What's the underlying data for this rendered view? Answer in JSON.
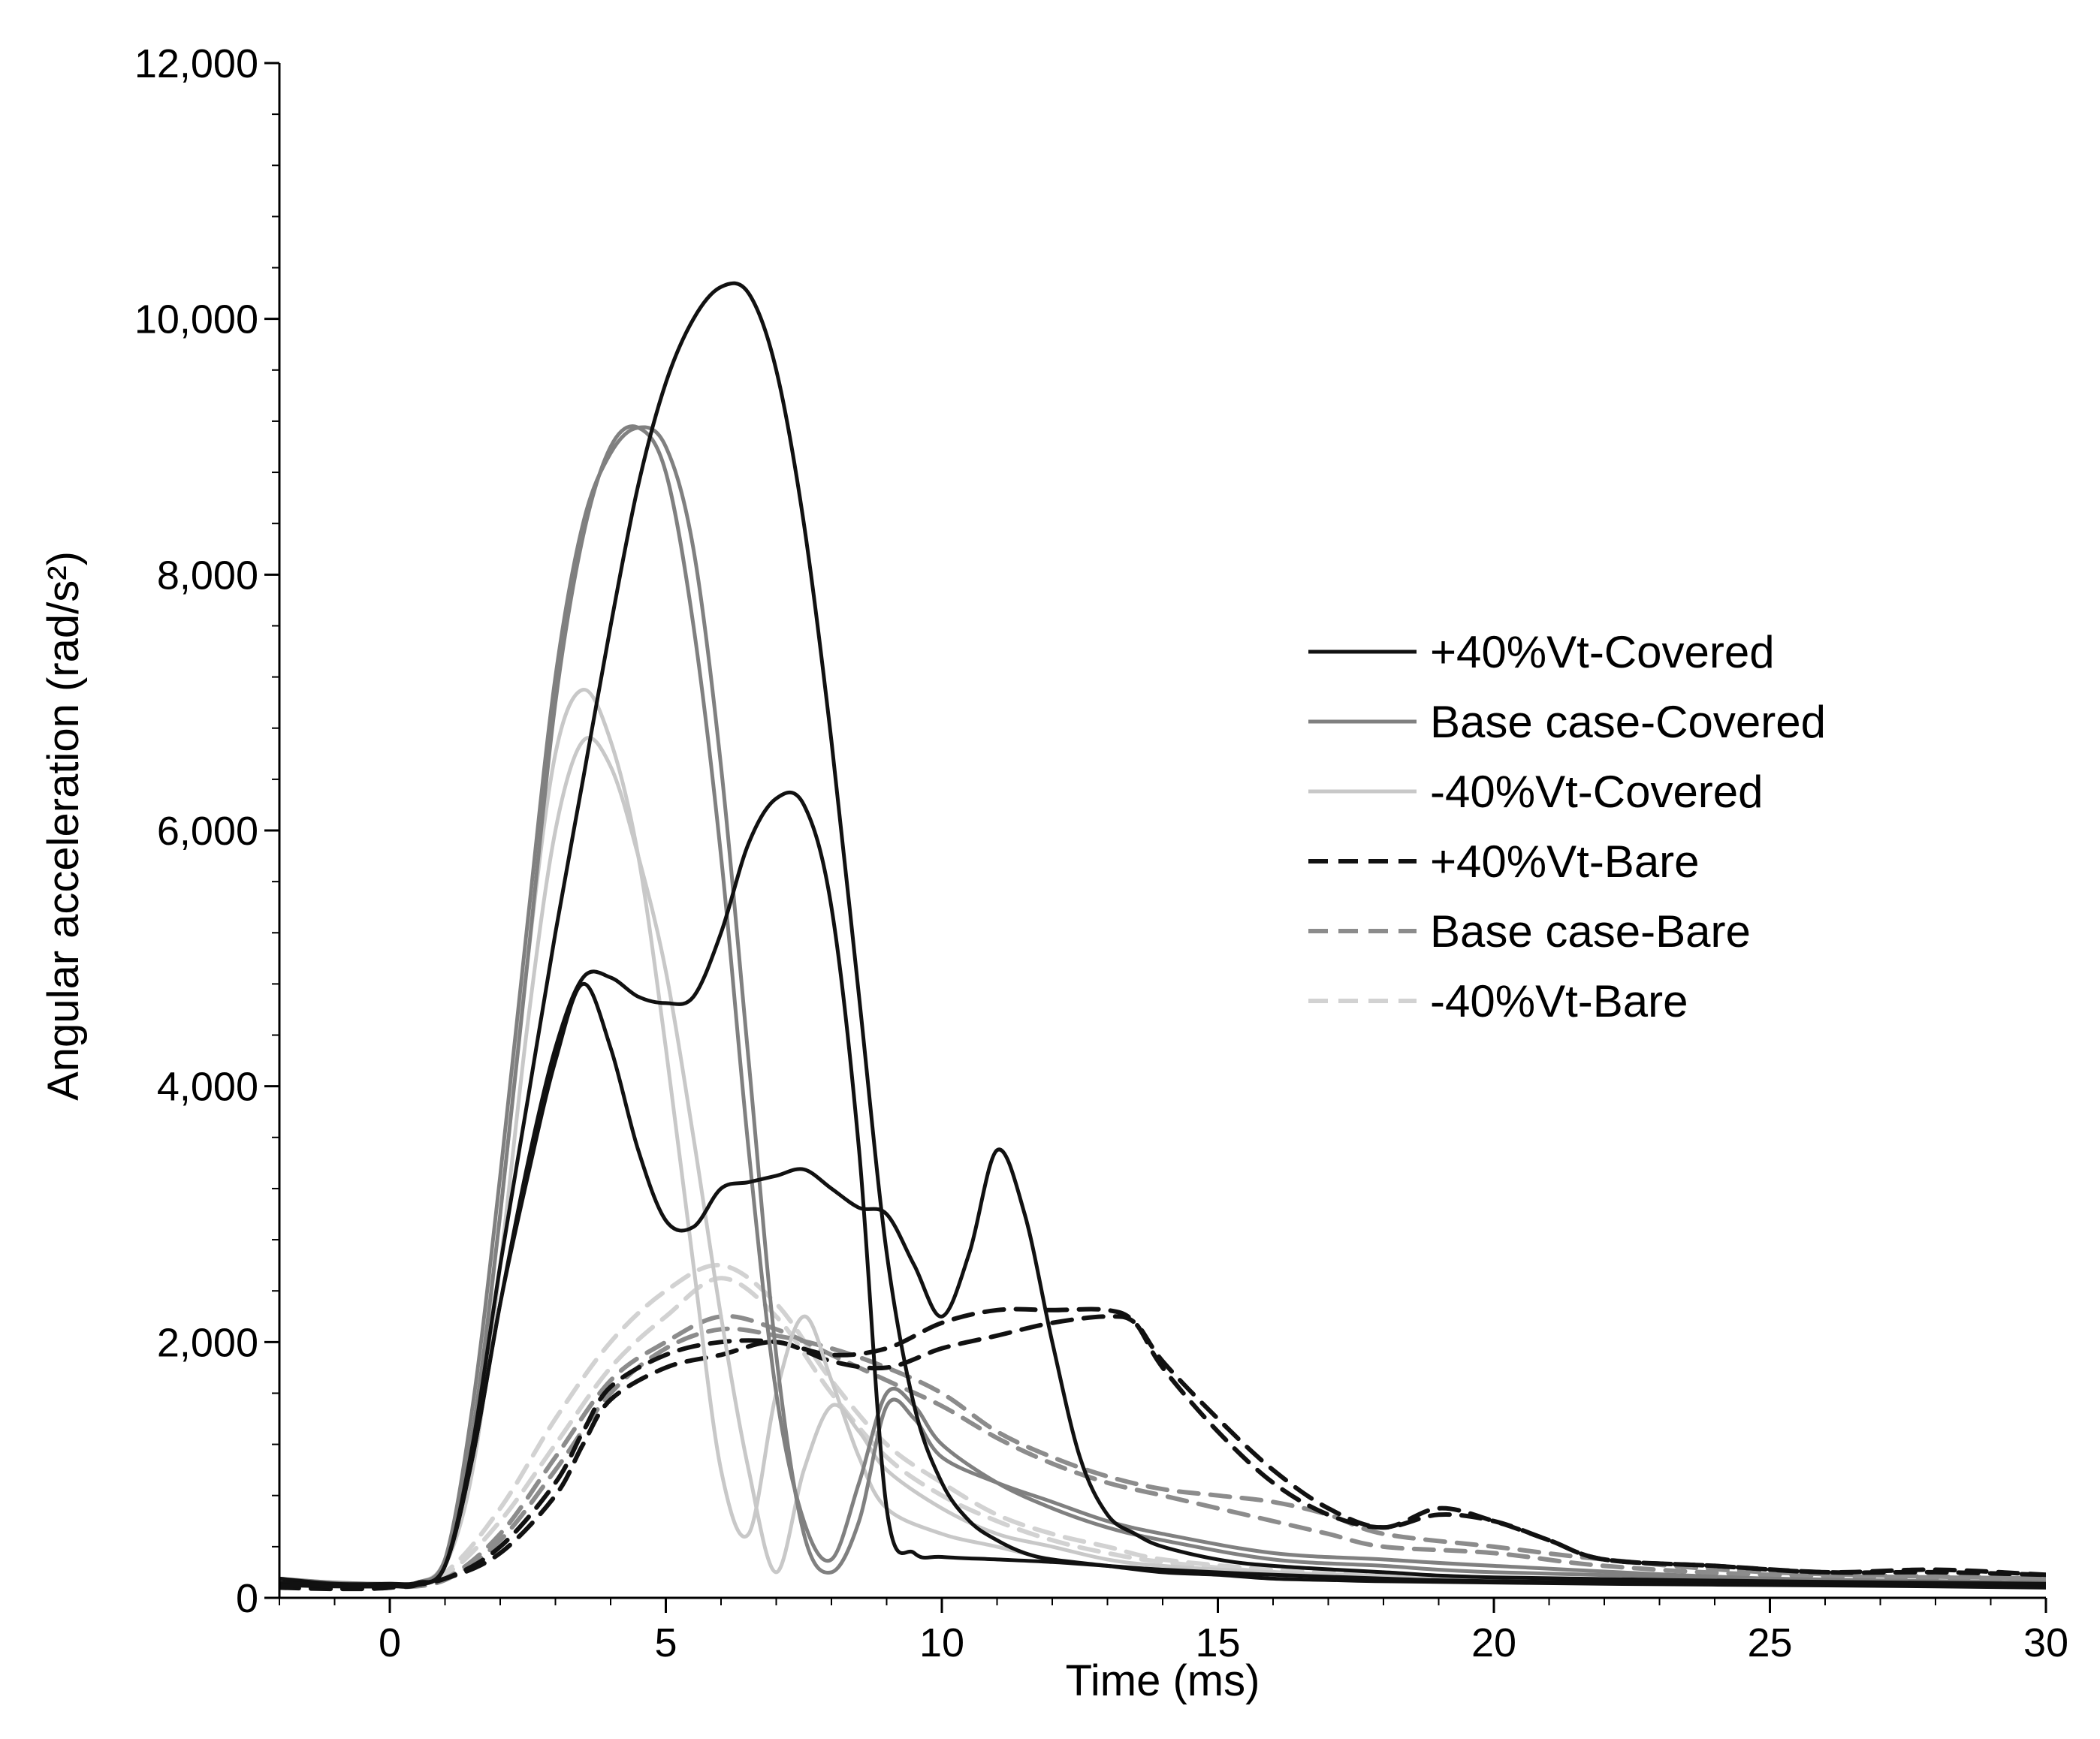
{
  "chart_data": {
    "type": "line",
    "title": "",
    "xlabel": "Time (ms)",
    "ylabel": "Angular acceleration (rad/s²)",
    "xlim": [
      -2,
      30
    ],
    "ylim": [
      0,
      12000
    ],
    "xticks": [
      0,
      5,
      10,
      15,
      20,
      25,
      30
    ],
    "xtick_labels": [
      "0",
      "5",
      "10",
      "15",
      "20",
      "25",
      "30"
    ],
    "yticks": [
      0,
      2000,
      4000,
      6000,
      8000,
      10000,
      12000
    ],
    "ytick_labels": [
      "0",
      "2,000",
      "4,000",
      "6,000",
      "8,000",
      "10,000",
      "12,000"
    ],
    "grid": false,
    "legend_position": "center-right",
    "series": [
      {
        "name": "+40%Vt-Covered",
        "style": "solid",
        "color": "#111111",
        "runs": [
          {
            "x": [
              -2,
              -1,
              0,
              0.5,
              1,
              1.5,
              2,
              2.5,
              3,
              3.5,
              4,
              4.5,
              5,
              5.5,
              6,
              6.5,
              7,
              7.5,
              8,
              8.5,
              9,
              9.5,
              10,
              10.5,
              11,
              11.5,
              12,
              13,
              14,
              15,
              16,
              17,
              18,
              20,
              22,
              25,
              28,
              30
            ],
            "y": [
              150,
              110,
              110,
              120,
              250,
              1200,
              2600,
              3900,
              5200,
              6400,
              7600,
              8700,
              9500,
              10000,
              10250,
              10200,
              9600,
              8400,
              6700,
              4700,
              2700,
              1500,
              900,
              600,
              450,
              350,
              300,
              250,
              200,
              180,
              150,
              140,
              130,
              120,
              110,
              100,
              90,
              80
            ]
          },
          {
            "x": [
              -2,
              -1,
              0,
              0.5,
              1,
              1.5,
              2,
              2.5,
              3,
              3.5,
              4,
              4.5,
              5,
              5.5,
              6,
              6.5,
              7,
              7.5,
              8,
              8.5,
              9,
              9.5,
              10,
              11,
              12,
              13,
              14,
              16,
              18,
              20,
              25,
              30
            ],
            "y": [
              120,
              100,
              100,
              110,
              250,
              1100,
              2300,
              3400,
              4300,
              4850,
              4850,
              4700,
              4650,
              4700,
              5200,
              5900,
              6250,
              6200,
              5400,
              3500,
              700,
              350,
              320,
              300,
              280,
              250,
              220,
              180,
              150,
              130,
              110,
              100
            ]
          },
          {
            "x": [
              -2,
              -1,
              0,
              0.5,
              1,
              1.5,
              2,
              2.5,
              3,
              3.5,
              4,
              4.5,
              5,
              5.5,
              6,
              6.5,
              7,
              7.5,
              8,
              8.5,
              9,
              9.5,
              10,
              10.5,
              11,
              11.5,
              12,
              12.5,
              13,
              13.5,
              14,
              15,
              16,
              18,
              20,
              25,
              30
            ],
            "y": [
              100,
              90,
              90,
              100,
              250,
              1100,
              2300,
              3300,
              4200,
              4800,
              4300,
              3500,
              2950,
              2900,
              3200,
              3250,
              3300,
              3350,
              3200,
              3050,
              3000,
              2600,
              2200,
              2700,
              3500,
              3000,
              2000,
              1100,
              650,
              500,
              400,
              300,
              250,
              200,
              160,
              130,
              110
            ]
          }
        ]
      },
      {
        "name": "Base case-Covered",
        "style": "solid",
        "color": "#808080",
        "runs": [
          {
            "x": [
              -2,
              -1,
              0,
              0.5,
              1,
              1.5,
              2,
              2.5,
              3,
              3.5,
              4,
              4.5,
              5,
              5.5,
              6,
              6.5,
              7,
              7.5,
              8,
              8.5,
              9,
              9.5,
              10,
              11,
              12,
              13,
              14,
              16,
              18,
              20,
              25,
              30
            ],
            "y": [
              150,
              120,
              110,
              120,
              300,
              1500,
              3300,
              5300,
              7200,
              8400,
              8950,
              9150,
              9000,
              8200,
              6500,
              4200,
              1900,
              500,
              200,
              600,
              1500,
              1400,
              1100,
              900,
              750,
              600,
              500,
              350,
              300,
              250,
              150,
              120
            ]
          },
          {
            "x": [
              -2,
              -1,
              0,
              0.5,
              1,
              1.5,
              2,
              2.5,
              3,
              3.5,
              4,
              4.5,
              5,
              5.5,
              6,
              6.5,
              7,
              7.5,
              8,
              8.5,
              9,
              9.5,
              10,
              11,
              12,
              13,
              14,
              16,
              18,
              20,
              25,
              30
            ],
            "y": [
              140,
              110,
              100,
              120,
              300,
              1300,
              3000,
              5000,
              7000,
              8300,
              9000,
              9150,
              8800,
              7600,
              5800,
              3500,
              1600,
              600,
              300,
              900,
              1600,
              1500,
              1200,
              900,
              700,
              550,
              450,
              300,
              250,
              200,
              150,
              120
            ]
          }
        ]
      },
      {
        "name": "-40%Vt-Covered",
        "style": "solid",
        "color": "#c8c8c8",
        "runs": [
          {
            "x": [
              -2,
              -1,
              0,
              0.5,
              1,
              1.5,
              2,
              2.5,
              3,
              3.5,
              4,
              4.5,
              5,
              5.5,
              6,
              6.5,
              7,
              7.5,
              8,
              8.5,
              9,
              10,
              11,
              12,
              13,
              14,
              16,
              18,
              20,
              25,
              30
            ],
            "y": [
              150,
              120,
              110,
              120,
              300,
              1200,
              3000,
              5000,
              6600,
              7100,
              6700,
              5800,
              4300,
              2600,
              1000,
              500,
              1600,
              2200,
              1700,
              1100,
              700,
              500,
              400,
              300,
              250,
              220,
              180,
              160,
              150,
              130,
              110
            ]
          },
          {
            "x": [
              -2,
              -1,
              0,
              0.5,
              1,
              1.5,
              2,
              2.5,
              3,
              3.5,
              4,
              4.5,
              5,
              5.5,
              6,
              6.5,
              7,
              7.5,
              8,
              8.5,
              9,
              10,
              11,
              12,
              13,
              14,
              16,
              18,
              20,
              25,
              30
            ],
            "y": [
              130,
              110,
              100,
              110,
              250,
              1000,
              2600,
              4500,
              6000,
              6700,
              6500,
              5800,
              4900,
              3600,
              2200,
              1000,
              200,
              1000,
              1500,
              1300,
              1000,
              700,
              500,
              400,
              300,
              250,
              200,
              170,
              150,
              130,
              110
            ]
          }
        ]
      },
      {
        "name": "+40%Vt-Bare",
        "style": "dashed",
        "color": "#111111",
        "runs": [
          {
            "x": [
              -2,
              -1,
              0,
              1,
              2,
              3,
              3.5,
              4,
              5,
              6,
              7,
              8,
              9,
              10,
              11,
              12,
              13,
              13.5,
              14,
              15,
              16,
              17,
              18,
              19,
              20,
              21,
              22,
              24,
              26,
              28,
              30
            ],
            "y": [
              100,
              90,
              90,
              150,
              400,
              900,
              1300,
              1650,
              1900,
              2000,
              2000,
              1900,
              1950,
              2150,
              2250,
              2250,
              2250,
              2150,
              1800,
              1300,
              900,
              650,
              550,
              650,
              600,
              450,
              300,
              250,
              200,
              200,
              180
            ]
          },
          {
            "x": [
              -2,
              -1,
              0,
              1,
              2,
              3,
              3.5,
              4,
              5,
              6,
              7,
              8,
              9,
              10,
              11,
              12,
              13,
              13.5,
              14,
              15,
              16,
              17,
              18,
              19,
              20,
              21,
              22,
              24,
              26,
              28,
              30
            ],
            "y": [
              80,
              70,
              80,
              150,
              350,
              800,
              1200,
              1550,
              1800,
              1900,
              2000,
              1850,
              1800,
              1950,
              2050,
              2150,
              2200,
              2150,
              1850,
              1400,
              1000,
              700,
              550,
              700,
              600,
              450,
              300,
              250,
              200,
              220,
              180
            ]
          }
        ]
      },
      {
        "name": "Base case-Bare",
        "style": "dashed",
        "color": "#8c8c8c",
        "runs": [
          {
            "x": [
              -2,
              -1,
              0,
              1,
              2,
              3,
              4,
              5,
              6,
              7,
              8,
              9,
              10,
              11,
              12,
              13,
              14,
              15,
              16,
              17,
              18,
              20,
              22,
              25,
              30
            ],
            "y": [
              100,
              90,
              90,
              150,
              500,
              1100,
              1700,
              2000,
              2200,
              2100,
              1900,
              1700,
              1500,
              1250,
              1050,
              900,
              800,
              700,
              600,
              500,
              400,
              350,
              250,
              180,
              150
            ]
          },
          {
            "x": [
              -2,
              -1,
              0,
              1,
              2,
              3,
              4,
              5,
              6,
              7,
              8,
              9,
              10,
              11,
              12,
              13,
              14,
              15,
              16,
              17,
              18,
              20,
              22,
              25,
              30
            ],
            "y": [
              90,
              80,
              80,
              140,
              450,
              1000,
              1600,
              1950,
              2100,
              2050,
              1950,
              1800,
              1600,
              1300,
              1100,
              950,
              850,
              800,
              750,
              650,
              500,
              400,
              300,
              200,
              150
            ]
          }
        ]
      },
      {
        "name": "-40%Vt-Bare",
        "style": "dashed",
        "color": "#d2d2d2",
        "runs": [
          {
            "x": [
              -2,
              -1,
              0,
              1,
              2,
              3,
              4,
              5,
              6,
              7,
              8,
              9,
              10,
              11,
              12,
              13,
              14,
              16,
              18,
              20,
              25,
              30
            ],
            "y": [
              100,
              90,
              90,
              200,
              700,
              1400,
              2000,
              2400,
              2600,
              2300,
              1700,
              1200,
              900,
              650,
              500,
              400,
              300,
              220,
              180,
              150,
              130,
              110
            ]
          },
          {
            "x": [
              -2,
              -1,
              0,
              1,
              2,
              3,
              4,
              5,
              6,
              7,
              8,
              9,
              10,
              11,
              12,
              13,
              14,
              16,
              18,
              20,
              25,
              30
            ],
            "y": [
              90,
              80,
              80,
              180,
              600,
              1200,
              1800,
              2200,
              2500,
              2200,
              1600,
              1100,
              800,
              600,
              450,
              350,
              280,
              200,
              160,
              140,
              120,
              100
            ]
          }
        ]
      }
    ]
  }
}
